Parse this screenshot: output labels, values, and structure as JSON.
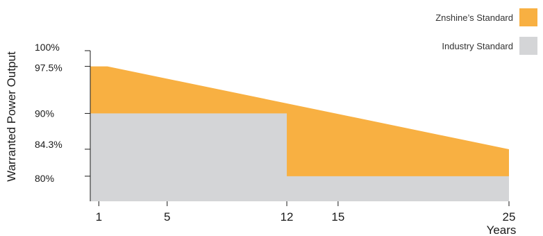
{
  "chart_data": {
    "type": "area",
    "xlabel": "Years",
    "ylabel": "Warranted Power Output",
    "x_ticks": [
      1,
      5,
      12,
      15,
      25
    ],
    "y_ticks": [
      {
        "value": 100,
        "label": "100%"
      },
      {
        "value": 97.5,
        "label": "97.5%"
      },
      {
        "value": 90,
        "label": "90%"
      },
      {
        "value": 84.3,
        "label": "84.3%"
      },
      {
        "value": 80,
        "label": "80%"
      }
    ],
    "xlim": [
      0.5,
      25
    ],
    "ylim": [
      76,
      100
    ],
    "series": [
      {
        "name": "Znshine’s Standard",
        "color": "#f8b042",
        "points": [
          [
            0.5,
            97.5
          ],
          [
            1.5,
            97.5
          ],
          [
            25,
            84.3
          ]
        ]
      },
      {
        "name": "Industry Standard",
        "color": "#d4d5d7",
        "points": [
          [
            0.5,
            90
          ],
          [
            12,
            90
          ],
          [
            12,
            80
          ],
          [
            25,
            80
          ]
        ]
      }
    ]
  },
  "legend": [
    {
      "label": "Znshine’s Standard",
      "color": "#f8b042"
    },
    {
      "label": "Industry Standard",
      "color": "#d4d5d7"
    }
  ]
}
